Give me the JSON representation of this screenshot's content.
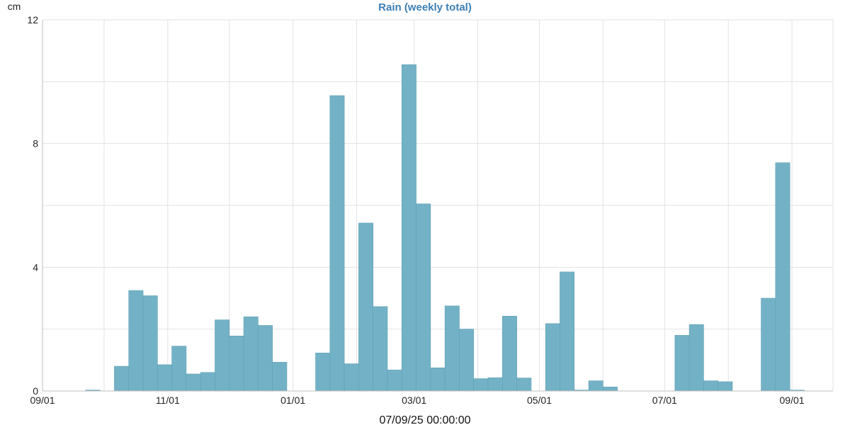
{
  "chart_data": {
    "type": "bar",
    "title": "Rain (weekly total)",
    "ylabel": "cm",
    "xlabel": "",
    "footer": "07/09/25 00:00:00",
    "ylim": [
      0,
      12
    ],
    "yticks": [
      0,
      4,
      8,
      12
    ],
    "grid": true,
    "x_start": "2024-09-01",
    "x_end": "2025-09-21",
    "xticks": [
      {
        "date": "2024-09-01",
        "label": "09/01"
      },
      {
        "date": "2024-11-01",
        "label": "11/01"
      },
      {
        "date": "2025-01-01",
        "label": "01/01"
      },
      {
        "date": "2025-03-01",
        "label": "03/01"
      },
      {
        "date": "2025-05-01",
        "label": "05/01"
      },
      {
        "date": "2025-07-01",
        "label": "07/01"
      },
      {
        "date": "2025-09-01",
        "label": "09/01"
      }
    ],
    "bar_days": 7,
    "series": [
      {
        "color": "#73b2c6",
        "x": [
          "2024-09-01",
          "2024-09-08",
          "2024-09-15",
          "2024-09-22",
          "2024-09-29",
          "2024-10-06",
          "2024-10-13",
          "2024-10-20",
          "2024-10-27",
          "2024-11-03",
          "2024-11-10",
          "2024-11-17",
          "2024-11-24",
          "2024-12-01",
          "2024-12-08",
          "2024-12-15",
          "2024-12-22",
          "2024-12-29",
          "2025-01-05",
          "2025-01-12",
          "2025-01-19",
          "2025-01-26",
          "2025-02-02",
          "2025-02-09",
          "2025-02-16",
          "2025-02-23",
          "2025-03-02",
          "2025-03-09",
          "2025-03-16",
          "2025-03-23",
          "2025-03-30",
          "2025-04-06",
          "2025-04-13",
          "2025-04-20",
          "2025-04-27",
          "2025-05-04",
          "2025-05-11",
          "2025-05-18",
          "2025-05-25",
          "2025-06-01",
          "2025-06-08",
          "2025-06-15",
          "2025-06-22",
          "2025-06-29",
          "2025-07-06",
          "2025-07-13",
          "2025-07-20",
          "2025-07-27",
          "2025-08-03",
          "2025-08-10",
          "2025-08-17",
          "2025-08-24",
          "2025-08-31",
          "2025-09-07",
          "2025-09-14"
        ],
        "values": [
          0,
          0,
          0,
          0.03,
          0,
          0.8,
          3.25,
          3.08,
          0.85,
          1.45,
          0.55,
          0.6,
          2.3,
          1.78,
          2.4,
          2.12,
          0.93,
          0,
          0,
          1.23,
          9.55,
          0.88,
          5.43,
          2.73,
          0.68,
          10.55,
          6.05,
          0.75,
          2.75,
          2.0,
          0.4,
          0.43,
          2.42,
          0.42,
          0,
          2.18,
          3.85,
          0.03,
          0.33,
          0.13,
          0,
          0,
          0,
          0,
          1.8,
          2.15,
          0.33,
          0.3,
          0,
          0,
          3.0,
          7.38,
          0.03,
          0,
          0
        ]
      }
    ]
  }
}
